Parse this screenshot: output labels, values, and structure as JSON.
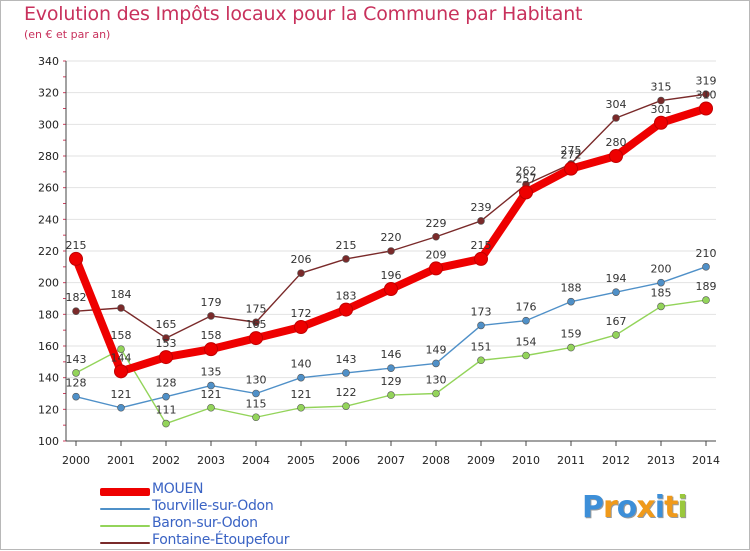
{
  "title": "Evolution des Impôts locaux pour la Commune par Habitant",
  "subtitle": "(en € et par an)",
  "logo": {
    "letters": [
      "P",
      "r",
      "o",
      "x",
      "i",
      "t",
      "i"
    ],
    "colors": [
      "#3d8fd8",
      "#f09a1a",
      "#3d8fd8",
      "#f09a1a",
      "#3d8fd8",
      "#f09a1a",
      "#9ac83c"
    ]
  },
  "chart_data": {
    "type": "line",
    "x": [
      "2000",
      "2001",
      "2002",
      "2003",
      "2004",
      "2005",
      "2006",
      "2007",
      "2008",
      "2009",
      "2010",
      "2011",
      "2012",
      "2013",
      "2014"
    ],
    "ylim": [
      100,
      340
    ],
    "yticks": [
      100,
      120,
      140,
      160,
      180,
      200,
      220,
      240,
      260,
      280,
      300,
      320,
      340
    ],
    "grid": "horizontal",
    "legend_position": "bottom-left",
    "series": [
      {
        "name": "MOUEN",
        "color": "#ee0000",
        "values": [
          215,
          144,
          153,
          158,
          165,
          172,
          183,
          196,
          209,
          215,
          257,
          272,
          280,
          301,
          310
        ],
        "labels": [
          "215",
          "144",
          "153",
          "158",
          "165",
          "172",
          "183",
          "196",
          "209",
          "215",
          "257",
          "272",
          "280",
          "301",
          "310"
        ]
      },
      {
        "name": "Tourville-sur-Odon",
        "color": "#4f90c8",
        "values": [
          128,
          121,
          128,
          135,
          130,
          140,
          143,
          146,
          149,
          173,
          176,
          188,
          194,
          200,
          210
        ],
        "labels": [
          "128",
          "121",
          "128",
          "135",
          "130",
          "140",
          "143",
          "146",
          "149",
          "173",
          "176",
          "188",
          "194",
          "200",
          "210"
        ]
      },
      {
        "name": "Baron-sur-Odon",
        "color": "#93d45a",
        "values": [
          143,
          158,
          111,
          121,
          115,
          121,
          122,
          129,
          130,
          151,
          154,
          159,
          167,
          185,
          189
        ],
        "labels": [
          "143",
          "158",
          "111",
          "121",
          "115",
          "121",
          "122",
          "129",
          "130",
          "151",
          "154",
          "159",
          "167",
          "185",
          "189"
        ]
      },
      {
        "name": "Fontaine-Étoupefour",
        "color": "#7a2a2a",
        "values": [
          182,
          184,
          165,
          179,
          175,
          206,
          215,
          220,
          229,
          239,
          262,
          275,
          304,
          315,
          319
        ],
        "labels": [
          "182",
          "184",
          "165",
          "179",
          "175",
          "206",
          "215",
          "220",
          "229",
          "239",
          "262",
          "275",
          "304",
          "315",
          "319"
        ]
      }
    ]
  }
}
